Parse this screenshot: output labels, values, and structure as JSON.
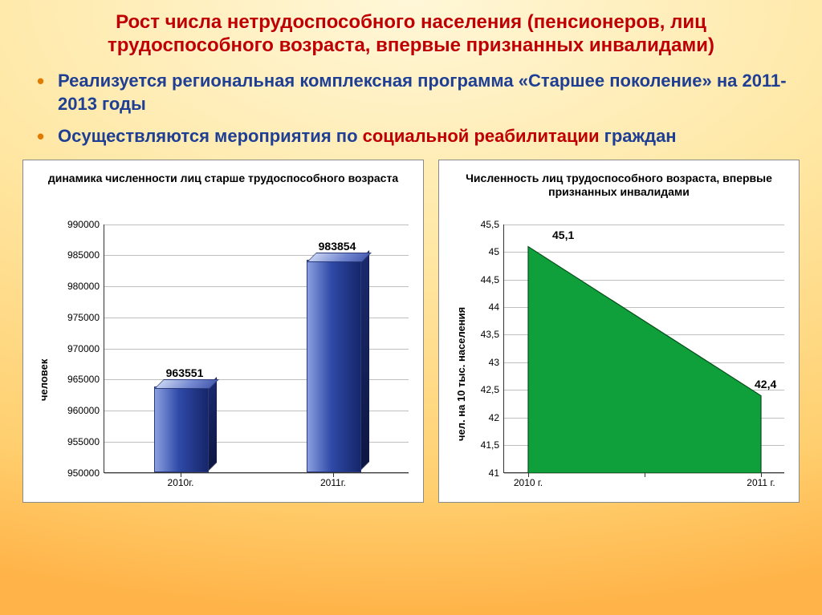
{
  "title": "Рост числа нетрудоспособного населения (пенсионеров, лиц трудоспособного возраста, впервые признанных инвалидами)",
  "bullets": [
    {
      "pre": "Реализуется региональная комплексная программа «Старшее поколение» ",
      "mid": "на 2011-2013 годы"
    },
    {
      "pre": "Осуществляются мероприятия по ",
      "red": "социальной реабилитации ",
      "post": "граждан"
    }
  ],
  "chart_left": {
    "type": "bar",
    "title": "динамика численности лиц старше трудоспособного возраста",
    "ylabel": "человек",
    "ylim": [
      950000,
      990000
    ],
    "ytick_step": 5000,
    "categories": [
      "2010г.",
      "2011г."
    ],
    "values": [
      963551,
      983854
    ],
    "value_labels": [
      "963551",
      "983854"
    ],
    "bar_front_gradient": [
      "#8b9fe0",
      "#2f4aa8",
      "#16266a"
    ],
    "bar_border": "#2b3a78",
    "grid_color": "#bfbfbf",
    "axis_color": "#333333",
    "bar_width": 0.35,
    "label_fontsize": 14,
    "title_fontsize": 14,
    "tick_fontsize": 12,
    "background_color": "#ffffff"
  },
  "chart_right": {
    "type": "area",
    "title": "Численность лиц трудоспособного возраста, впервые признанных инвалидами",
    "ylabel": "чел. на 10 тыс. населения",
    "ylim": [
      41.0,
      45.5
    ],
    "ytick_step": 0.5,
    "categories": [
      "2010 г.",
      "2011 г."
    ],
    "values": [
      45.1,
      42.4
    ],
    "value_labels": [
      "45,1",
      "42,4"
    ],
    "area_fill": "#0fa03c",
    "area_border": "#064d1a",
    "grid_color": "#bfbfbf",
    "axis_color": "#333333",
    "label_fontsize": 14,
    "title_fontsize": 14,
    "tick_fontsize": 12,
    "background_color": "#ffffff"
  },
  "slide_background_gradient": [
    "#fff7d8",
    "#ffe8a6",
    "#ffcf6f",
    "#ffb348"
  ]
}
